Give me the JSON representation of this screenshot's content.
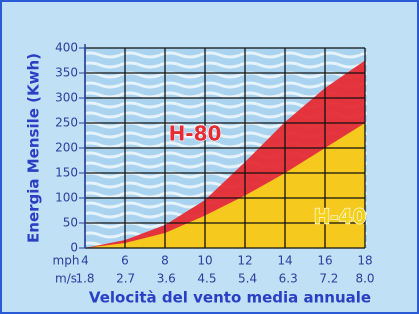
{
  "chart_data": {
    "type": "area",
    "x": [
      4,
      6,
      8,
      10,
      12,
      14,
      16,
      18
    ],
    "series": [
      {
        "name": "H-80",
        "color": "#e62b33",
        "values": [
          0,
          16,
          46,
          96,
          172,
          252,
          320,
          375
        ]
      },
      {
        "name": "H-40",
        "color": "#f5d21c",
        "values": [
          0,
          10,
          30,
          65,
          105,
          150,
          200,
          250
        ]
      }
    ],
    "xlim": [
      4,
      18
    ],
    "xticks": [
      4,
      6,
      8,
      10,
      12,
      14,
      16,
      18
    ],
    "x_unit": "mph",
    "x2lim": [
      1.8,
      8.0
    ],
    "x2ticks": [
      1.8,
      2.7,
      3.6,
      4.5,
      5.4,
      6.3,
      7.2,
      {
        "value": 8.0,
        "label": "8.0"
      }
    ],
    "x2_unit": "m/s",
    "ylim": [
      0,
      400
    ],
    "yticks": [
      0,
      50,
      100,
      150,
      200,
      250,
      300,
      350,
      400
    ],
    "grid": true,
    "ylabel": "Energia Mensile (Kwh)",
    "xlabel": "Velocità del vento media annuale"
  }
}
